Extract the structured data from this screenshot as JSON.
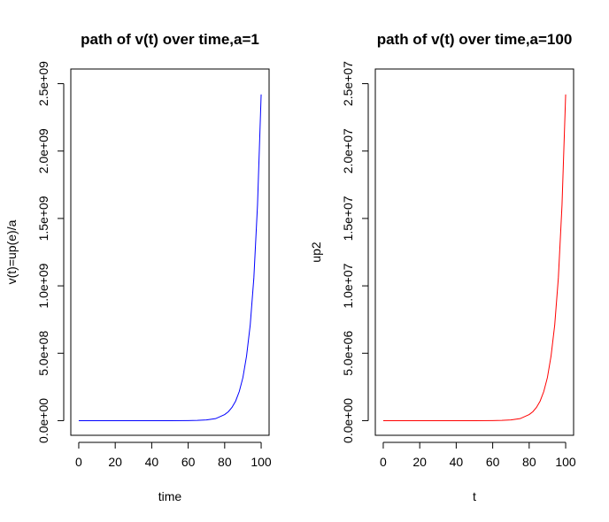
{
  "chart_data": [
    {
      "type": "line",
      "title": "path of v(t) over time,a=1",
      "xlabel": "time",
      "ylabel": "v(t)=up(e)/a",
      "xlim": [
        0,
        100
      ],
      "ylim": [
        0,
        2500000000
      ],
      "x_ticks": [
        0,
        20,
        40,
        60,
        80,
        100
      ],
      "x_tick_labels": [
        "0",
        "20",
        "40",
        "60",
        "80",
        "100"
      ],
      "y_ticks": [
        0,
        500000000,
        1000000000,
        1500000000,
        2000000000,
        2500000000
      ],
      "y_tick_labels": [
        "0.0e+00",
        "5.0e+08",
        "1.0e+09",
        "1.5e+09",
        "2.0e+09",
        "2.5e+09"
      ],
      "grid": false,
      "series": [
        {
          "color": "#0000ff",
          "x": [
            0,
            10,
            20,
            30,
            40,
            50,
            60,
            65,
            70,
            75,
            80,
            82,
            84,
            86,
            88,
            90,
            92,
            94,
            96,
            98,
            100
          ],
          "y": [
            0,
            0,
            0,
            0,
            0,
            0,
            500000,
            2000000,
            5000000,
            15000000,
            45000000,
            66000000,
            98000000,
            145000000,
            216000000,
            320000000,
            480000000,
            710000000,
            1060000000,
            1600000000,
            2420000000
          ]
        }
      ]
    },
    {
      "type": "line",
      "title": "path of v(t) over time,a=100",
      "xlabel": "t",
      "ylabel": "up2",
      "xlim": [
        0,
        100
      ],
      "ylim": [
        0,
        25000000
      ],
      "x_ticks": [
        0,
        20,
        40,
        60,
        80,
        100
      ],
      "x_tick_labels": [
        "0",
        "20",
        "40",
        "60",
        "80",
        "100"
      ],
      "y_ticks": [
        0,
        5000000,
        10000000,
        15000000,
        20000000,
        25000000
      ],
      "y_tick_labels": [
        "0.0e+00",
        "5.0e+06",
        "1.0e+07",
        "1.5e+07",
        "2.0e+07",
        "2.5e+07"
      ],
      "grid": false,
      "series": [
        {
          "color": "#ff0000",
          "x": [
            0,
            10,
            20,
            30,
            40,
            50,
            60,
            65,
            70,
            75,
            80,
            82,
            84,
            86,
            88,
            90,
            92,
            94,
            96,
            98,
            100
          ],
          "y": [
            0,
            0,
            0,
            0,
            0,
            0,
            5000,
            20000,
            50000,
            150000,
            450000,
            660000,
            980000,
            1450000,
            2160000,
            3200000,
            4800000,
            7100000,
            10600000,
            16000000,
            24200000
          ]
        }
      ]
    }
  ]
}
